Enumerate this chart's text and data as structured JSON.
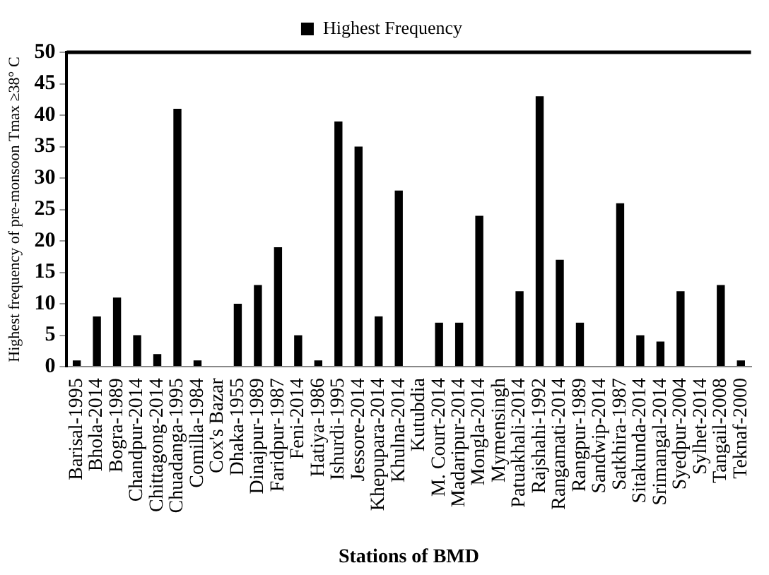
{
  "chart_data": {
    "type": "bar",
    "xlabel": "Stations of BMD",
    "ylabel": "Highest frequency of pre-monsoon Tmax ≥38° C",
    "categories": [
      "Barisal-1995",
      "Bhola-2014",
      "Bogra-1989",
      "Chandpur-2014",
      "Chittagong-2014",
      "Chuadanga-1995",
      "Comilla-1984",
      "Cox's Bazar",
      "Dhaka-1955",
      "Dinajpur-1989",
      "Faridpur-1987",
      "Feni-2014",
      "Hatiya-1986",
      "Ishurdi-1995",
      "Jessore-2014",
      "Khepupara-2014",
      "Khulna-2014",
      "Kutubdia",
      "M. Court-2014",
      "Madaripur-2014",
      "Mongla-2014",
      "Mymensingh",
      "Patuakhali-2014",
      "Rajshahi-1992",
      "Rangamati-2014",
      "Rangpur-1989",
      "Sandwip-2014",
      "Satkhira-1987",
      "Sitakunda-2014",
      "Srimangal-2014",
      "Syedpur-2004",
      "Sylhet-2014",
      "Tangail-2008",
      "Teknaf-2000"
    ],
    "series": [
      {
        "name": "Highest Frequency",
        "color": "#000000",
        "values": [
          1,
          8,
          11,
          5,
          2,
          41,
          1,
          0,
          10,
          13,
          19,
          5,
          1,
          39,
          35,
          8,
          28,
          0,
          7,
          7,
          24,
          0,
          12,
          43,
          17,
          7,
          0,
          26,
          5,
          4,
          12,
          0,
          13,
          1
        ]
      }
    ],
    "ylim": [
      0,
      50
    ],
    "yticks": [
      0,
      5,
      10,
      15,
      20,
      25,
      30,
      35,
      40,
      45,
      50
    ],
    "grid": false,
    "legend": "top"
  }
}
